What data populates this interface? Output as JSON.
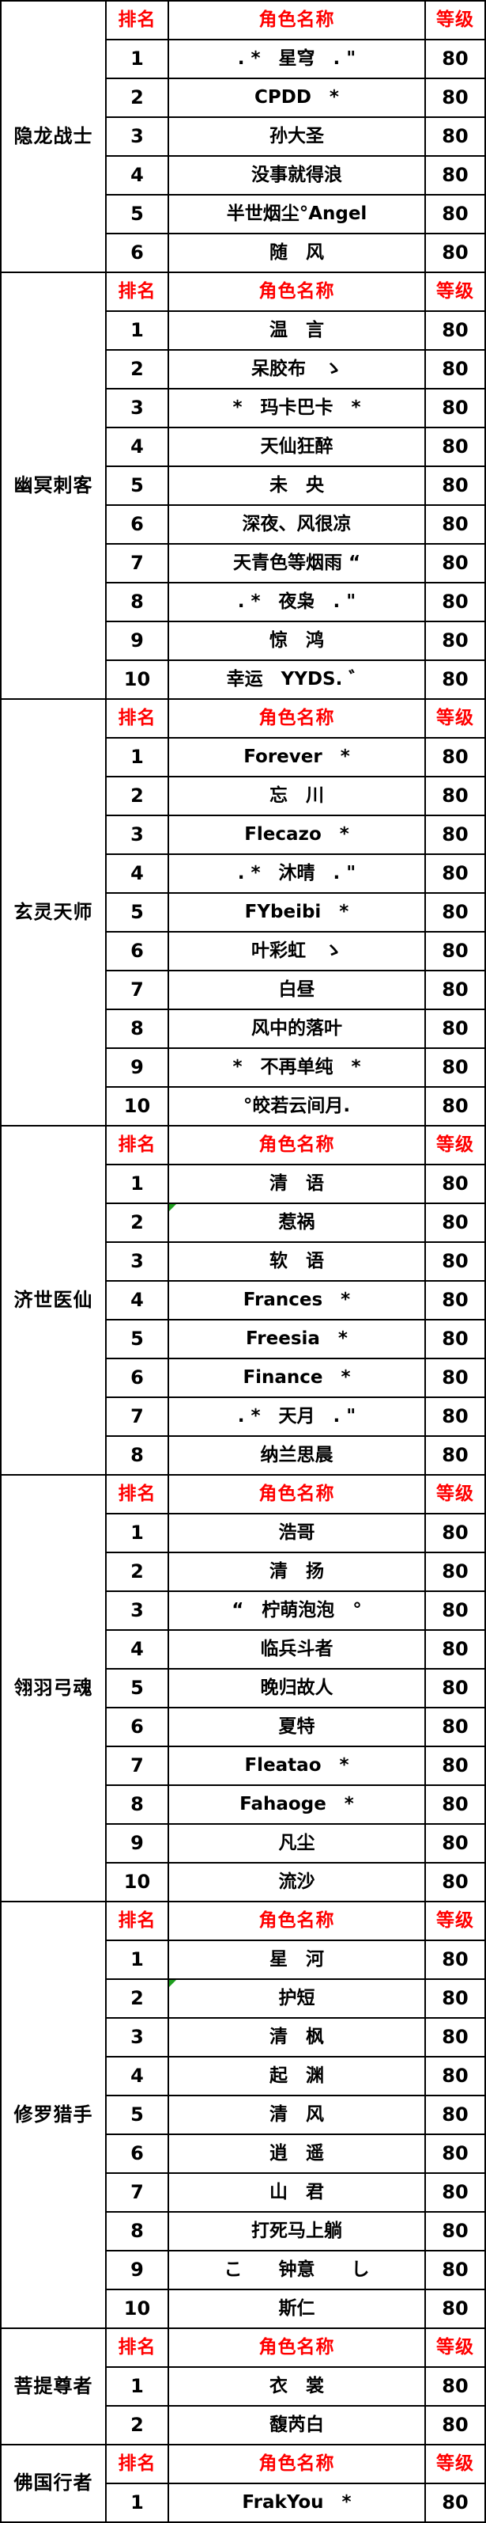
{
  "colors": {
    "header_text": "#ff0000",
    "body_text": "#000000",
    "border": "#000000",
    "background": "#ffffff",
    "error_marker_green": "#1f9f1f"
  },
  "table": {
    "column_headers": {
      "rank": "排名",
      "name": "角色名称",
      "level": "等级"
    },
    "groups": [
      {
        "label": "隐龙战士",
        "rows": [
          {
            "rank": "1",
            "name": ". *　星穹　. \"",
            "level": "80"
          },
          {
            "rank": "2",
            "name": "CPDD　*",
            "level": "80"
          },
          {
            "rank": "3",
            "name": "孙大圣",
            "level": "80"
          },
          {
            "rank": "4",
            "name": "没事就得浪",
            "level": "80"
          },
          {
            "rank": "5",
            "name": "半世烟尘°Angel",
            "level": "80"
          },
          {
            "rank": "6",
            "name": "随　风",
            "level": "80"
          }
        ]
      },
      {
        "label": "幽冥刺客",
        "rows": [
          {
            "rank": "1",
            "name": "温　言",
            "level": "80"
          },
          {
            "rank": "2",
            "name": "呆胶布　ゝ",
            "level": "80"
          },
          {
            "rank": "3",
            "name": "*　玛卡巴卡　*",
            "level": "80"
          },
          {
            "rank": "4",
            "name": "天仙狂醉",
            "level": "80"
          },
          {
            "rank": "5",
            "name": "未　央",
            "level": "80"
          },
          {
            "rank": "6",
            "name": "深夜、风很凉",
            "level": "80"
          },
          {
            "rank": "7",
            "name": "天青色等烟雨 “",
            "level": "80"
          },
          {
            "rank": "8",
            "name": ". *　夜枭　. \"",
            "level": "80"
          },
          {
            "rank": "9",
            "name": "惊　鸿",
            "level": "80"
          },
          {
            "rank": "10",
            "name": "幸运　YYDS. ゛",
            "level": "80"
          }
        ]
      },
      {
        "label": "玄灵天师",
        "rows": [
          {
            "rank": "1",
            "name": "Forever　*",
            "level": "80"
          },
          {
            "rank": "2",
            "name": "忘　川",
            "level": "80"
          },
          {
            "rank": "3",
            "name": "Flecazo　*",
            "level": "80"
          },
          {
            "rank": "4",
            "name": ". *　沐晴　. \"",
            "level": "80"
          },
          {
            "rank": "5",
            "name": "FYbeibi　*",
            "level": "80"
          },
          {
            "rank": "6",
            "name": "叶彩虹　ゝ",
            "level": "80"
          },
          {
            "rank": "7",
            "name": "白昼",
            "level": "80"
          },
          {
            "rank": "8",
            "name": "风中的落叶",
            "level": "80"
          },
          {
            "rank": "9",
            "name": "*　不再单纯　*",
            "level": "80"
          },
          {
            "rank": "10",
            "name": "°皎若云间月.",
            "level": "80"
          }
        ]
      },
      {
        "label": "济世医仙",
        "rows": [
          {
            "rank": "1",
            "name": "清　语",
            "level": "80"
          },
          {
            "rank": "2",
            "name": "惹祸",
            "level": "80",
            "marker": true
          },
          {
            "rank": "3",
            "name": "软　语",
            "level": "80"
          },
          {
            "rank": "4",
            "name": "Frances　*",
            "level": "80"
          },
          {
            "rank": "5",
            "name": "Freesia　*",
            "level": "80"
          },
          {
            "rank": "6",
            "name": "Finance　*",
            "level": "80"
          },
          {
            "rank": "7",
            "name": ". *　天月　. \"",
            "level": "80"
          },
          {
            "rank": "8",
            "name": "纳兰思晨",
            "level": "80"
          }
        ]
      },
      {
        "label": "翎羽弓魂",
        "rows": [
          {
            "rank": "1",
            "name": "浩哥",
            "level": "80"
          },
          {
            "rank": "2",
            "name": "清　扬",
            "level": "80"
          },
          {
            "rank": "3",
            "name": "“　柠萌泡泡　°",
            "level": "80"
          },
          {
            "rank": "4",
            "name": "临兵斗者",
            "level": "80"
          },
          {
            "rank": "5",
            "name": "晚归故人",
            "level": "80"
          },
          {
            "rank": "6",
            "name": "夏特",
            "level": "80"
          },
          {
            "rank": "7",
            "name": "Fleatao　*",
            "level": "80"
          },
          {
            "rank": "8",
            "name": "Fahaoge　*",
            "level": "80"
          },
          {
            "rank": "9",
            "name": "凡尘",
            "level": "80"
          },
          {
            "rank": "10",
            "name": "流沙",
            "level": "80"
          }
        ]
      },
      {
        "label": "修罗猎手",
        "rows": [
          {
            "rank": "1",
            "name": "星　河",
            "level": "80"
          },
          {
            "rank": "2",
            "name": "护短",
            "level": "80",
            "marker": true
          },
          {
            "rank": "3",
            "name": "清　枫",
            "level": "80"
          },
          {
            "rank": "4",
            "name": "起　渊",
            "level": "80"
          },
          {
            "rank": "5",
            "name": "清　风",
            "level": "80"
          },
          {
            "rank": "6",
            "name": "逍　遥",
            "level": "80"
          },
          {
            "rank": "7",
            "name": "山　君",
            "level": "80"
          },
          {
            "rank": "8",
            "name": "打死马上躺",
            "level": "80"
          },
          {
            "rank": "9",
            "name": "こ　　钟意　　し",
            "level": "80"
          },
          {
            "rank": "10",
            "name": "斯仁",
            "level": "80"
          }
        ]
      },
      {
        "label": "菩提尊者",
        "rows": [
          {
            "rank": "1",
            "name": "衣　裳",
            "level": "80"
          },
          {
            "rank": "2",
            "name": "馥芮白",
            "level": "80"
          }
        ]
      },
      {
        "label": "佛国行者",
        "rows": [
          {
            "rank": "1",
            "name": "FrakYou　*",
            "level": "80"
          }
        ]
      }
    ]
  }
}
